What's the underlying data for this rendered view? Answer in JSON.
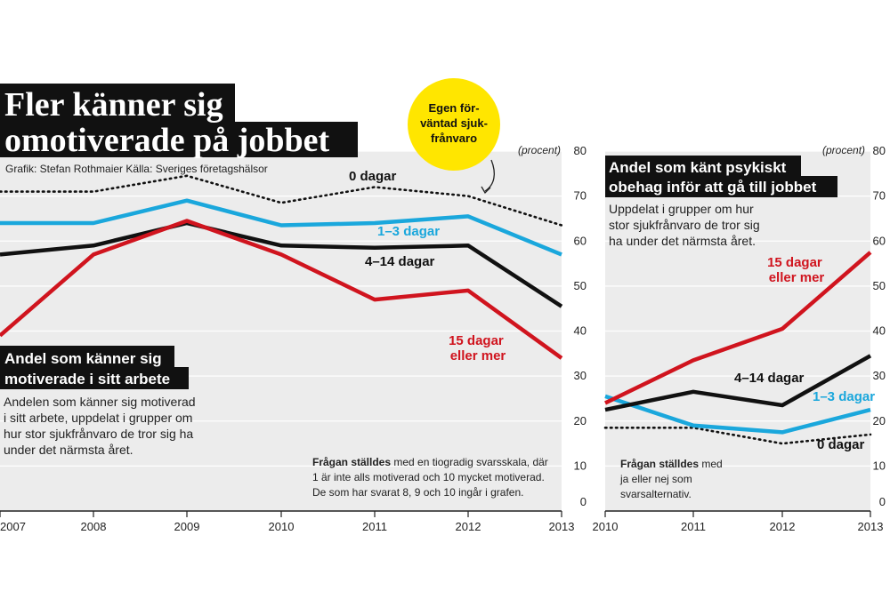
{
  "title": [
    "Fler känner sig",
    "omotiverade på jobbet"
  ],
  "credit": "Grafik: Stefan Rothmaier Källa: Sveriges företagshälsor",
  "bubble": [
    "Egen för-",
    "väntad sjuk-",
    "frånvaro"
  ],
  "colors": {
    "zero": "#111111",
    "one_three": "#1aa7dc",
    "four_fourteen": "#111111",
    "fifteen": "#d0141e",
    "plot_bg": "#ececec",
    "bubble": "#ffe600"
  },
  "chart_data": [
    {
      "type": "line",
      "subtitle": [
        "Andel som känner sig",
        "motiverade i sitt arbete"
      ],
      "description": [
        "Andelen som känner sig motiverad",
        "i sitt arbete, uppdelat i grupper om",
        "hur stor sjukfrånvaro de tror sig ha",
        "under det närmsta året."
      ],
      "note_bold": "Frågan ställdes",
      "note": [
        " med en tiogradig svarsskala, där",
        "1 är inte alls motiverad och 10 mycket motiverad.",
        "De som har svarat 8, 9 och 10 ingår i grafen."
      ],
      "unit": "(procent)",
      "x": [
        "2007",
        "2008",
        "2009",
        "2010",
        "2011",
        "2012",
        "2013"
      ],
      "ylim": [
        0,
        80
      ],
      "yticks": [
        "0",
        "10",
        "20",
        "30",
        "40",
        "50",
        "60",
        "70",
        "80"
      ],
      "series": [
        {
          "name": "0 dagar",
          "style": "dotted",
          "color": "#111111",
          "values": [
            71,
            71,
            74.5,
            68.5,
            72,
            70,
            63.5
          ]
        },
        {
          "name": "1–3 dagar",
          "style": "solid",
          "color": "#1aa7dc",
          "values": [
            64,
            64,
            69,
            63.5,
            64,
            65.5,
            57
          ]
        },
        {
          "name": "4–14 dagar",
          "style": "solid",
          "color": "#111111",
          "values": [
            57,
            59,
            64,
            59,
            58.5,
            59,
            45.5
          ]
        },
        {
          "name": "15 dagar\neller mer",
          "style": "solid",
          "color": "#d0141e",
          "values": [
            39,
            57,
            64.5,
            57,
            47,
            49,
            34
          ]
        }
      ]
    },
    {
      "type": "line",
      "subtitle": [
        "Andel som känt psykiskt",
        "obehag inför att gå till jobbet"
      ],
      "description": [
        "Uppdelat i grupper om hur",
        "stor sjukfrånvaro de tror sig",
        "ha under det närmsta året."
      ],
      "note_bold": "Frågan ställdes",
      "note": [
        " med",
        "ja eller nej som",
        "svarsalternativ."
      ],
      "unit": "(procent)",
      "x": [
        "2010",
        "2011",
        "2012",
        "2013"
      ],
      "ylim": [
        0,
        80
      ],
      "yticks": [
        "0",
        "10",
        "20",
        "30",
        "40",
        "50",
        "60",
        "70",
        "80"
      ],
      "series": [
        {
          "name": "0 dagar",
          "style": "dotted",
          "color": "#111111",
          "values": [
            18.5,
            18.5,
            15,
            17
          ]
        },
        {
          "name": "1–3 dagar",
          "style": "solid",
          "color": "#1aa7dc",
          "values": [
            25.5,
            19,
            17.5,
            22.5
          ]
        },
        {
          "name": "4–14 dagar",
          "style": "solid",
          "color": "#111111",
          "values": [
            22.5,
            26.5,
            23.5,
            34.5
          ]
        },
        {
          "name": "15 dagar\neller mer",
          "style": "solid",
          "color": "#d0141e",
          "values": [
            24,
            33.5,
            40.5,
            57.5
          ]
        }
      ]
    }
  ]
}
